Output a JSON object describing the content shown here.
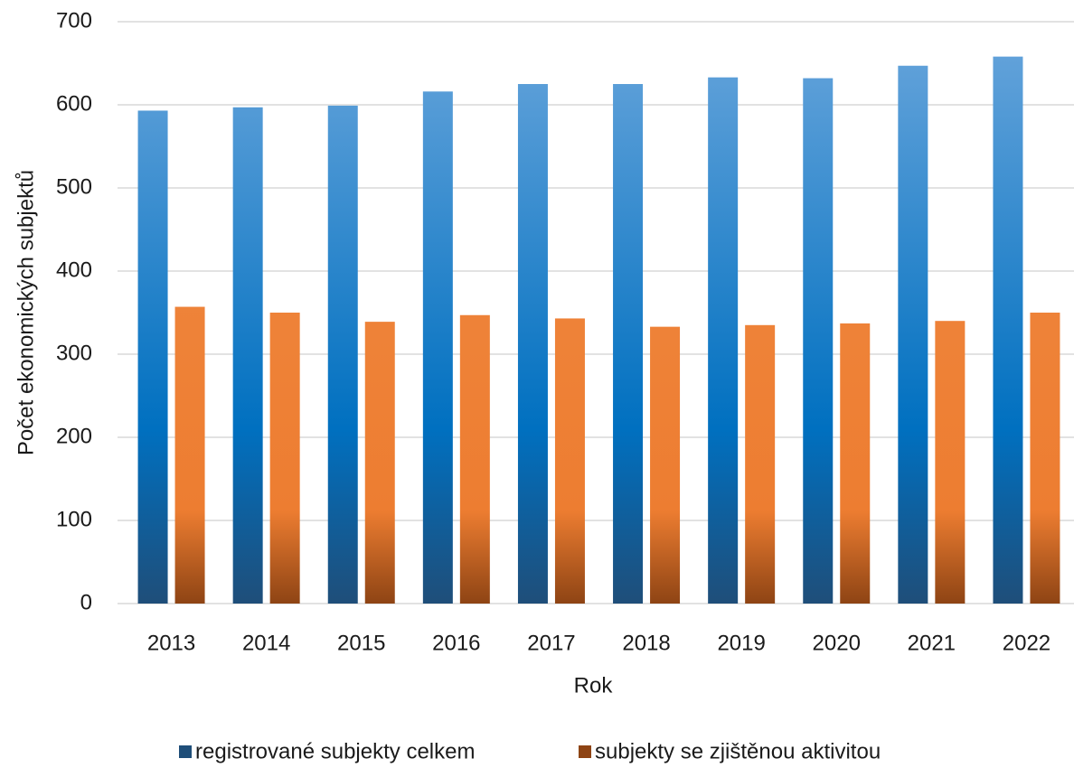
{
  "chart_data": {
    "type": "bar",
    "x_label": "Rok",
    "y_label": "Počet ekonomických subjektů",
    "categories": [
      "2013",
      "2014",
      "2015",
      "2016",
      "2017",
      "2018",
      "2019",
      "2020",
      "2021",
      "2022"
    ],
    "series": [
      {
        "name": "registrované subjekty celkem",
        "color": "#2e75b6",
        "values": [
          593,
          597,
          599,
          616,
          625,
          625,
          633,
          632,
          647,
          658
        ]
      },
      {
        "name": "subjekty se zjištěnou aktivitou",
        "color": "#ed7d31",
        "values": [
          357,
          350,
          339,
          347,
          343,
          333,
          335,
          337,
          340,
          350
        ]
      }
    ],
    "ylim": [
      0,
      700
    ],
    "yticks": [
      0,
      100,
      200,
      300,
      400,
      500,
      600,
      700
    ],
    "grid": true,
    "legend": "bottom"
  }
}
